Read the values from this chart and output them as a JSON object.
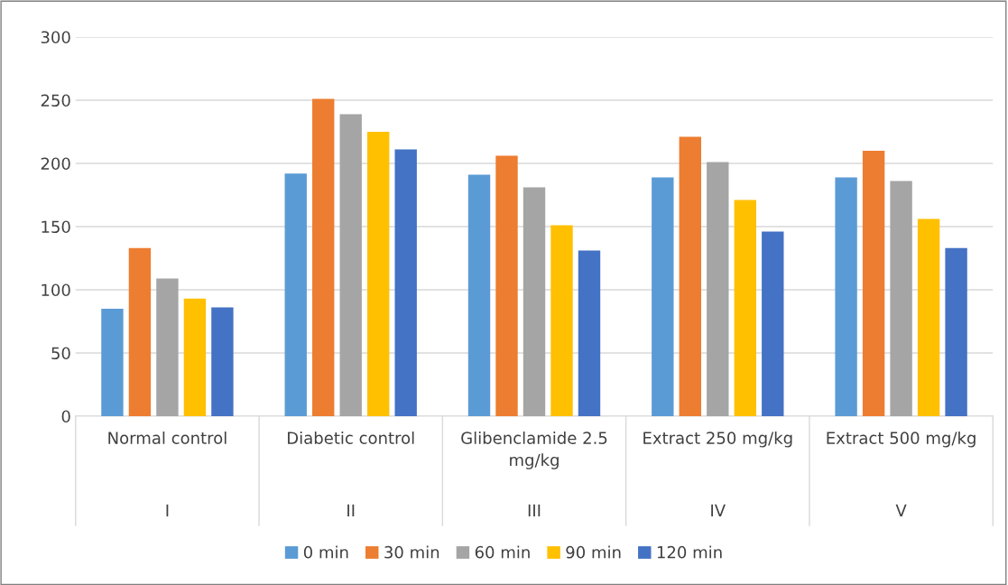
{
  "chart_data": {
    "type": "bar",
    "categories": [
      "Normal control",
      "Diabetic control",
      "Glibenclamide 2.5\nmg/kg",
      "Extract 250 mg/kg",
      "Extract 500 mg/kg"
    ],
    "series": [
      {
        "name": "0 min",
        "color": "#5b9bd5",
        "values": [
          85,
          192,
          191,
          189,
          189
        ]
      },
      {
        "name": "30 min",
        "color": "#ed7d31",
        "values": [
          133,
          251,
          206,
          221,
          210
        ]
      },
      {
        "name": "60 min",
        "color": "#a5a5a5",
        "values": [
          109,
          239,
          181,
          201,
          186
        ]
      },
      {
        "name": "90 min",
        "color": "#ffc000",
        "values": [
          93,
          225,
          151,
          171,
          156
        ]
      },
      {
        "name": "120 min",
        "color": "#4472c4",
        "values": [
          86,
          211,
          131,
          146,
          133
        ]
      }
    ],
    "annotations": [
      "I",
      "II",
      "III",
      "IV",
      "V"
    ],
    "ylim": [
      0,
      300
    ],
    "yticks": [
      0,
      50,
      100,
      150,
      200,
      250,
      300
    ],
    "grid": "y",
    "legend": "bottom"
  }
}
